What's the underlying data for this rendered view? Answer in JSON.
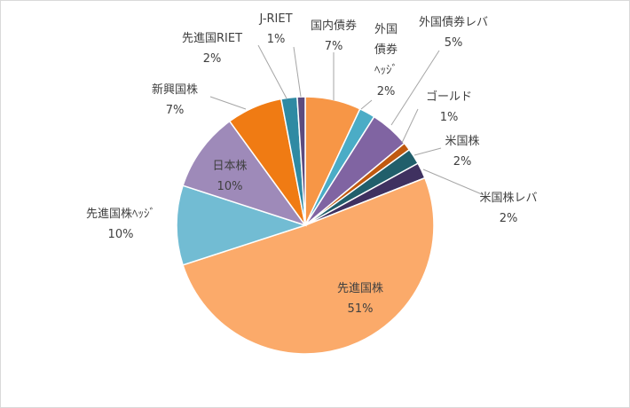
{
  "chart_data": {
    "type": "pie",
    "slices": [
      {
        "name": "国内債券",
        "value": 7,
        "label": "7%",
        "color": "#f79646"
      },
      {
        "name": "外国債券ヘッジ",
        "value": 2,
        "label": "2%",
        "color": "#4bacc6"
      },
      {
        "name": "外国債券レバ",
        "value": 5,
        "label": "5%",
        "color": "#8064a2"
      },
      {
        "name": "ゴールド",
        "value": 1,
        "label": "1%",
        "color": "#c0590f"
      },
      {
        "name": "米国株",
        "value": 2,
        "label": "2%",
        "color": "#215f6b"
      },
      {
        "name": "米国株レバ",
        "value": 2,
        "label": "2%",
        "color": "#3f3160"
      },
      {
        "name": "先進国株",
        "value": 51,
        "label": "51%",
        "color": "#fbaa6a"
      },
      {
        "name": "先進国株ヘッジ",
        "value": 10,
        "label": "10%",
        "color": "#72bcd3"
      },
      {
        "name": "日本株",
        "value": 10,
        "label": "10%",
        "color": "#9e8ab9"
      },
      {
        "name": "新興国株",
        "value": 7,
        "label": "7%",
        "color": "#f07b13"
      },
      {
        "name": "先進国RIET",
        "value": 2,
        "label": "2%",
        "color": "#2f8aa3"
      },
      {
        "name": "J-RIET",
        "value": 1,
        "label": "1%",
        "color": "#5c4b7e"
      }
    ]
  }
}
